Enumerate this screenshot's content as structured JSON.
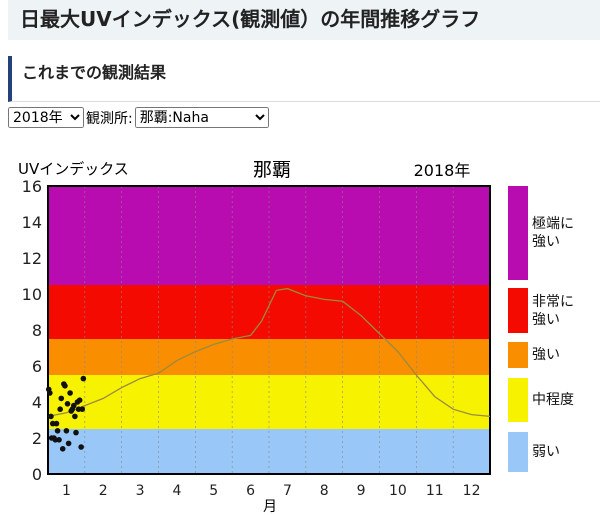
{
  "header": {
    "title": "日最大UVインデックス(観測値）の年間推移グラフ"
  },
  "section": {
    "title": "これまでの観測結果"
  },
  "controls": {
    "year": "2018年",
    "station_label": "観測所:",
    "station": "那覇:Naha"
  },
  "chart_data": {
    "type": "scatter",
    "title": "那覇",
    "year_label": "2018年",
    "ylabel": "UVインデックス",
    "xlabel": "月",
    "ylim": [
      0,
      16
    ],
    "yticks": [
      "0",
      "2",
      "4",
      "6",
      "8",
      "10",
      "12",
      "14",
      "16"
    ],
    "xticks": [
      "1",
      "2",
      "3",
      "4",
      "5",
      "6",
      "7",
      "8",
      "9",
      "10",
      "11",
      "12"
    ],
    "bands": [
      {
        "label": "弱い",
        "from": 0,
        "to": 2.5,
        "color": "#99c8f8"
      },
      {
        "label": "中程度",
        "from": 2.5,
        "to": 5.5,
        "color": "#f7f300"
      },
      {
        "label": "強い",
        "from": 5.5,
        "to": 7.5,
        "color": "#f98e00"
      },
      {
        "label": "非常に強い",
        "from": 7.5,
        "to": 10.5,
        "color": "#f50a00"
      },
      {
        "label": "極端に強い",
        "from": 10.5,
        "to": 16,
        "color": "#b80cb0"
      }
    ],
    "climatology": {
      "x": [
        0.5,
        1,
        1.5,
        2,
        2.5,
        3,
        3.5,
        4,
        4.5,
        5,
        5.5,
        6,
        6.3,
        6.7,
        7,
        7.5,
        8,
        8.5,
        9,
        9.5,
        10,
        10.5,
        11,
        11.5,
        12,
        12.5
      ],
      "y": [
        3.2,
        3.4,
        3.8,
        4.2,
        4.8,
        5.3,
        5.6,
        6.3,
        6.8,
        7.2,
        7.5,
        7.7,
        8.5,
        10.2,
        10.3,
        9.9,
        9.7,
        9.6,
        8.8,
        7.8,
        6.8,
        5.5,
        4.3,
        3.6,
        3.3,
        3.2
      ],
      "color": "#9a8a40"
    },
    "series": [
      {
        "name": "2018",
        "x": [
          0.52,
          0.55,
          0.58,
          0.6,
          0.63,
          0.66,
          0.7,
          0.73,
          0.76,
          0.8,
          0.83,
          0.86,
          0.9,
          0.93,
          0.96,
          1.0,
          1.03,
          1.06,
          1.1,
          1.13,
          1.16,
          1.2,
          1.23,
          1.26,
          1.3,
          1.33,
          1.36,
          1.4,
          1.43,
          1.46
        ],
        "y": [
          4.7,
          4.5,
          3.2,
          2.0,
          2.8,
          2.0,
          1.9,
          2.8,
          2.4,
          1.9,
          3.6,
          4.2,
          1.4,
          5.0,
          4.9,
          2.4,
          3.9,
          1.7,
          4.5,
          3.5,
          3.6,
          3.8,
          3.2,
          2.3,
          4.0,
          3.6,
          4.1,
          1.5,
          3.6,
          5.3
        ]
      }
    ]
  }
}
